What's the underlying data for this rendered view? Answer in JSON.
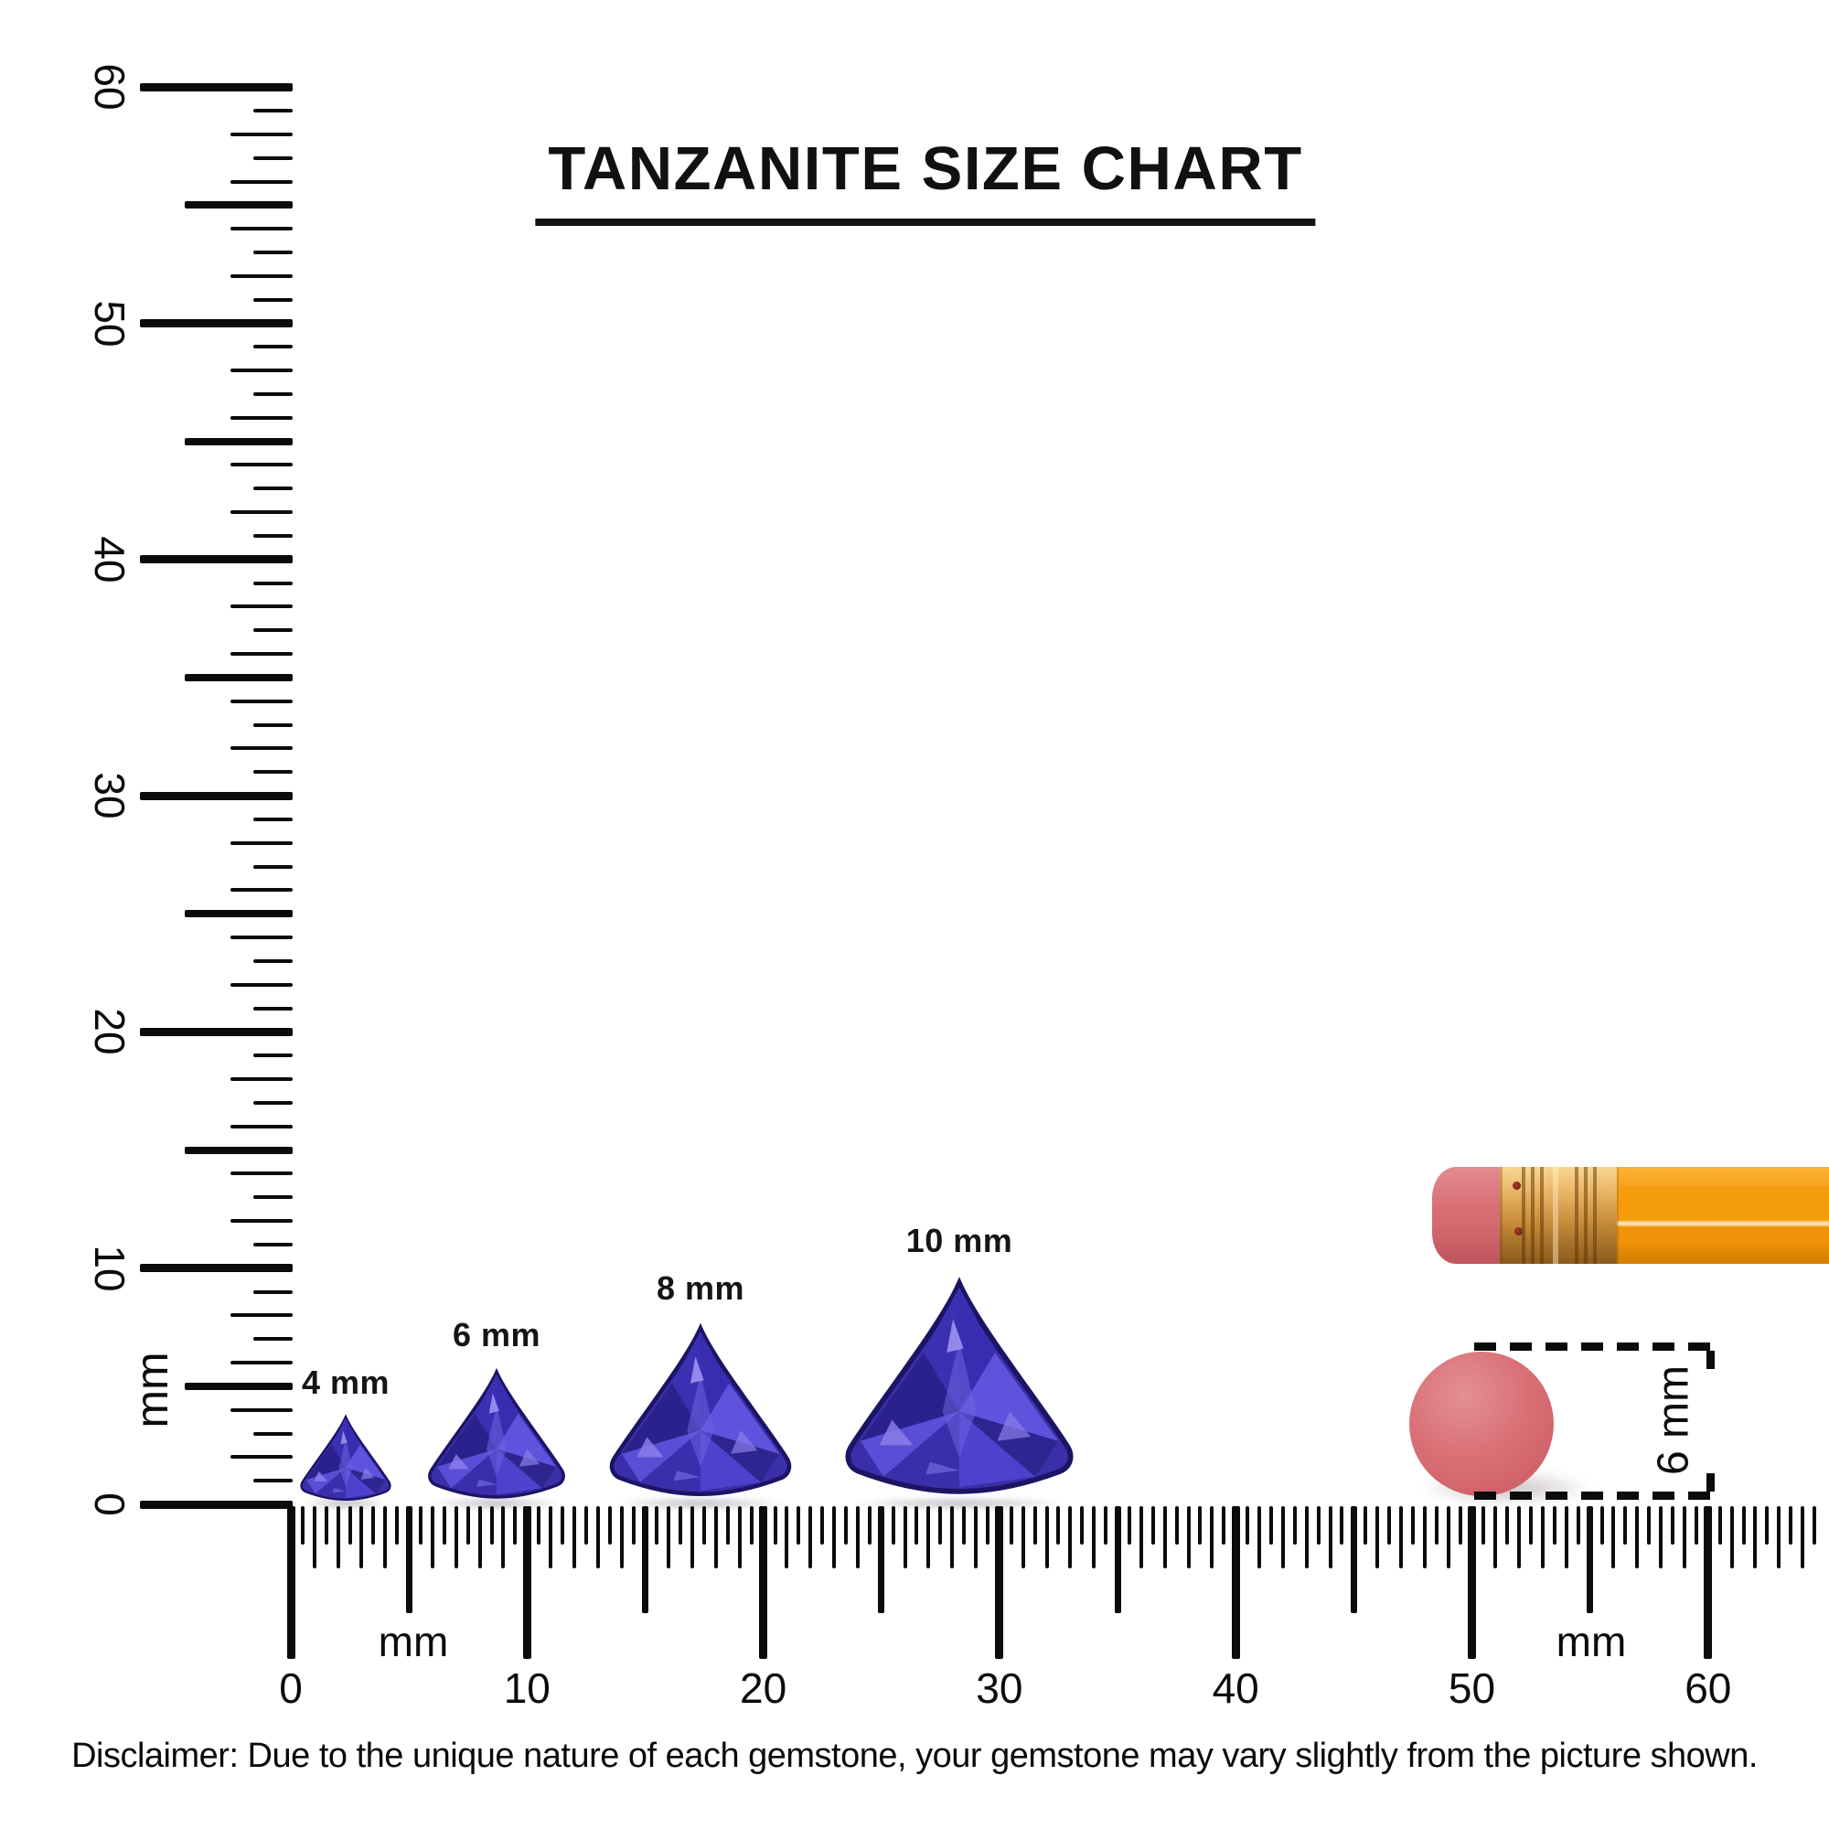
{
  "title": "TANZANITE SIZE CHART",
  "vertical_ruler": {
    "unit": "mm",
    "labels": [
      "0",
      "10",
      "20",
      "30",
      "40",
      "50",
      "60"
    ]
  },
  "horizontal_ruler": {
    "unit_labels": [
      "mm",
      "mm"
    ],
    "labels": [
      "0",
      "10",
      "20",
      "30",
      "40",
      "50",
      "60"
    ]
  },
  "gems": [
    {
      "label": "4 mm",
      "size_mm": 4
    },
    {
      "label": "6 mm",
      "size_mm": 6
    },
    {
      "label": "8 mm",
      "size_mm": 8
    },
    {
      "label": "10 mm",
      "size_mm": 10
    }
  ],
  "size_reference": {
    "dimension_label": "6 mm"
  },
  "disclaimer": "Disclaimer: Due to the unique nature of each gemstone, your gemstone may vary slightly from the picture shown.",
  "colors": {
    "ink": "#0b0b0b",
    "gem_primary": "#4033B8",
    "gem_dark": "#241B6E",
    "gem_light": "#6A5FE0",
    "pencil_body": "#F69D0E",
    "pencil_ferrule": "#DCA553",
    "pencil_eraser": "#DA7177",
    "eraser_disc": "#DA7177"
  }
}
